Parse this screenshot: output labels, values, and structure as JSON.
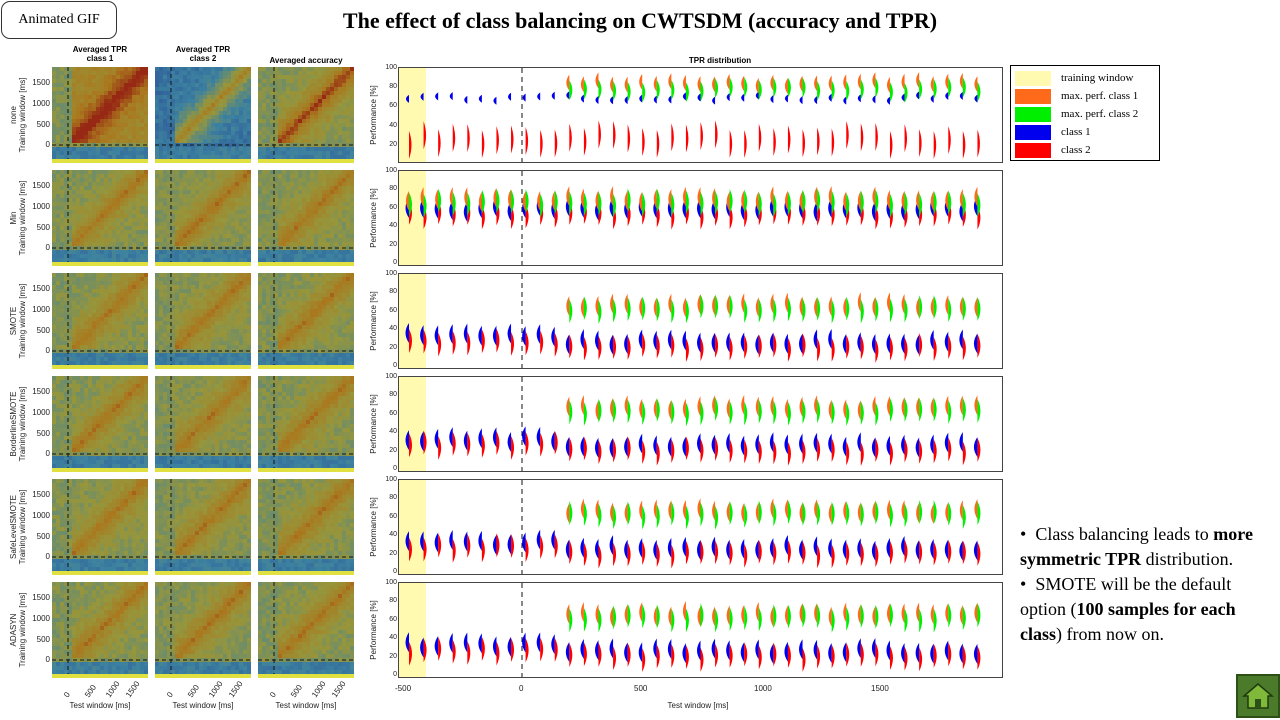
{
  "gif_button": "Animated  GIF",
  "title": "The effect of class balancing on CWTSDM  (accuracy and TPR)",
  "columns": [
    "Averaged TPR\nclass 1",
    "Averaged TPR\nclass 2",
    "Averaged accuracy"
  ],
  "rows": [
    {
      "method": "none"
    },
    {
      "method": "Min"
    },
    {
      "method": "SMOTE"
    },
    {
      "method": "BorderlineSMOTE"
    },
    {
      "method": "SafeLevelSMOTE"
    },
    {
      "method": "ADASYN"
    }
  ],
  "row_axis_suffix": "Training window [ms]",
  "heatmap_yticks": [
    "1500",
    "1000",
    "500",
    "0"
  ],
  "heatmap_xticks": [
    "0",
    "500",
    "1000",
    "1500"
  ],
  "heatmap_xlabel": "Test window [ms]",
  "tpr_title": "TPR distribution",
  "tpr_ylabel": "Performance [%]",
  "tpr_yticks_first": [
    "100",
    "80",
    "60",
    "40",
    "20"
  ],
  "tpr_yticks_second": [
    "100",
    "80",
    "60",
    "40",
    "20",
    "0"
  ],
  "tpr_xticks": [
    "-500",
    "0",
    "500",
    "1000",
    "1500"
  ],
  "tpr_xlabel": "Test window [ms]",
  "legend": [
    {
      "label": "training window",
      "color": "#fffab0"
    },
    {
      "label": "max.  perf. class 1",
      "color": "#ff6a1a"
    },
    {
      "label": "max.  perf. class 2",
      "color": "#00ee00"
    },
    {
      "label": "class 1",
      "color": "#0000ee"
    },
    {
      "label": "class 2",
      "color": "#ff0000"
    }
  ],
  "notes": {
    "line1_pre": "Class balancing  leads to ",
    "line1_bold": "more symmetric  TPR",
    "line1_post": " distribution.",
    "line2_pre": "SMOTE  will be the default option (",
    "line2_bold": "100 samples for each class",
    "line2_post": ") from now on."
  },
  "home_icon": "home-icon"
}
